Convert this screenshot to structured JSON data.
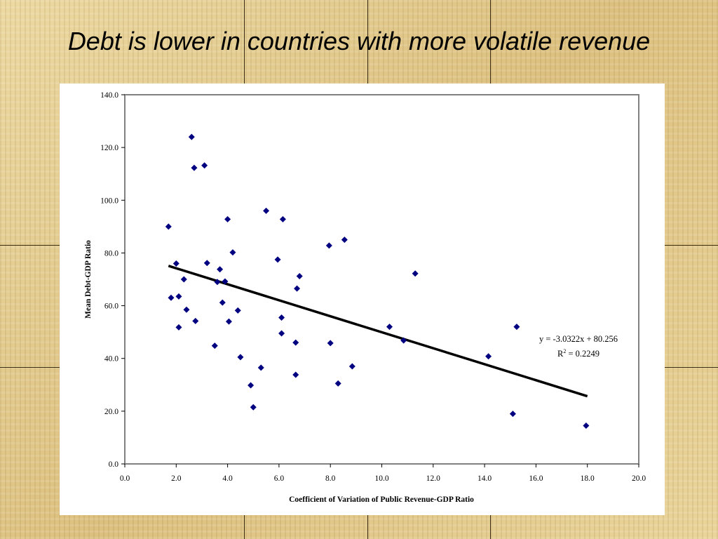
{
  "slide": {
    "title": "Debt is lower in countries with more volatile revenue"
  },
  "chart_data": {
    "type": "scatter",
    "xlabel": "Coefficient of Variation of Public Revenue-GDP Ratio",
    "ylabel": "Mean Debt-GDP Ratio",
    "xlim": [
      0,
      20
    ],
    "ylim": [
      0,
      140
    ],
    "x_ticks": [
      "0.0",
      "2.0",
      "4.0",
      "6.0",
      "8.0",
      "10.0",
      "12.0",
      "14.0",
      "16.0",
      "18.0",
      "20.0"
    ],
    "y_ticks": [
      "0.0",
      "20.0",
      "40.0",
      "60.0",
      "80.0",
      "100.0",
      "120.0",
      "140.0"
    ],
    "grid": false,
    "legend": "none",
    "marker_color": "#000080",
    "trendline_color": "#000000",
    "points": [
      {
        "x": 1.7,
        "y": 90.0
      },
      {
        "x": 1.8,
        "y": 63.0
      },
      {
        "x": 2.0,
        "y": 76.0
      },
      {
        "x": 2.1,
        "y": 63.5
      },
      {
        "x": 2.1,
        "y": 51.8
      },
      {
        "x": 2.3,
        "y": 70.0
      },
      {
        "x": 2.4,
        "y": 58.5
      },
      {
        "x": 2.6,
        "y": 124.0
      },
      {
        "x": 2.7,
        "y": 112.3
      },
      {
        "x": 2.75,
        "y": 54.2
      },
      {
        "x": 3.1,
        "y": 113.2
      },
      {
        "x": 3.2,
        "y": 76.2
      },
      {
        "x": 3.5,
        "y": 44.8
      },
      {
        "x": 3.6,
        "y": 69.0
      },
      {
        "x": 3.7,
        "y": 73.8
      },
      {
        "x": 3.8,
        "y": 61.2
      },
      {
        "x": 3.9,
        "y": 69.2
      },
      {
        "x": 4.0,
        "y": 92.8
      },
      {
        "x": 4.05,
        "y": 54.0
      },
      {
        "x": 4.2,
        "y": 80.2
      },
      {
        "x": 4.4,
        "y": 58.2
      },
      {
        "x": 4.5,
        "y": 40.5
      },
      {
        "x": 4.9,
        "y": 29.8
      },
      {
        "x": 5.0,
        "y": 21.5
      },
      {
        "x": 5.3,
        "y": 36.5
      },
      {
        "x": 5.5,
        "y": 96.0
      },
      {
        "x": 5.95,
        "y": 77.5
      },
      {
        "x": 6.1,
        "y": 49.5
      },
      {
        "x": 6.1,
        "y": 55.5
      },
      {
        "x": 6.15,
        "y": 92.8
      },
      {
        "x": 6.65,
        "y": 46.0
      },
      {
        "x": 6.65,
        "y": 33.8
      },
      {
        "x": 6.7,
        "y": 66.5
      },
      {
        "x": 6.8,
        "y": 71.2
      },
      {
        "x": 7.95,
        "y": 82.8
      },
      {
        "x": 8.0,
        "y": 45.8
      },
      {
        "x": 8.3,
        "y": 30.5
      },
      {
        "x": 8.55,
        "y": 85.0
      },
      {
        "x": 8.85,
        "y": 37.0
      },
      {
        "x": 10.3,
        "y": 52.0
      },
      {
        "x": 10.85,
        "y": 46.8
      },
      {
        "x": 11.3,
        "y": 72.2
      },
      {
        "x": 14.15,
        "y": 40.8
      },
      {
        "x": 15.1,
        "y": 19.0
      },
      {
        "x": 15.25,
        "y": 52.0
      },
      {
        "x": 17.95,
        "y": 14.5
      }
    ],
    "trendline": {
      "slope": -3.0322,
      "intercept": 80.256,
      "x_start": 1.7,
      "x_end": 18.0,
      "equation": "y = -3.0322x + 80.256",
      "r2_prefix": "R",
      "r2_exp": "2",
      "r2_value": " = 0.2249"
    }
  }
}
